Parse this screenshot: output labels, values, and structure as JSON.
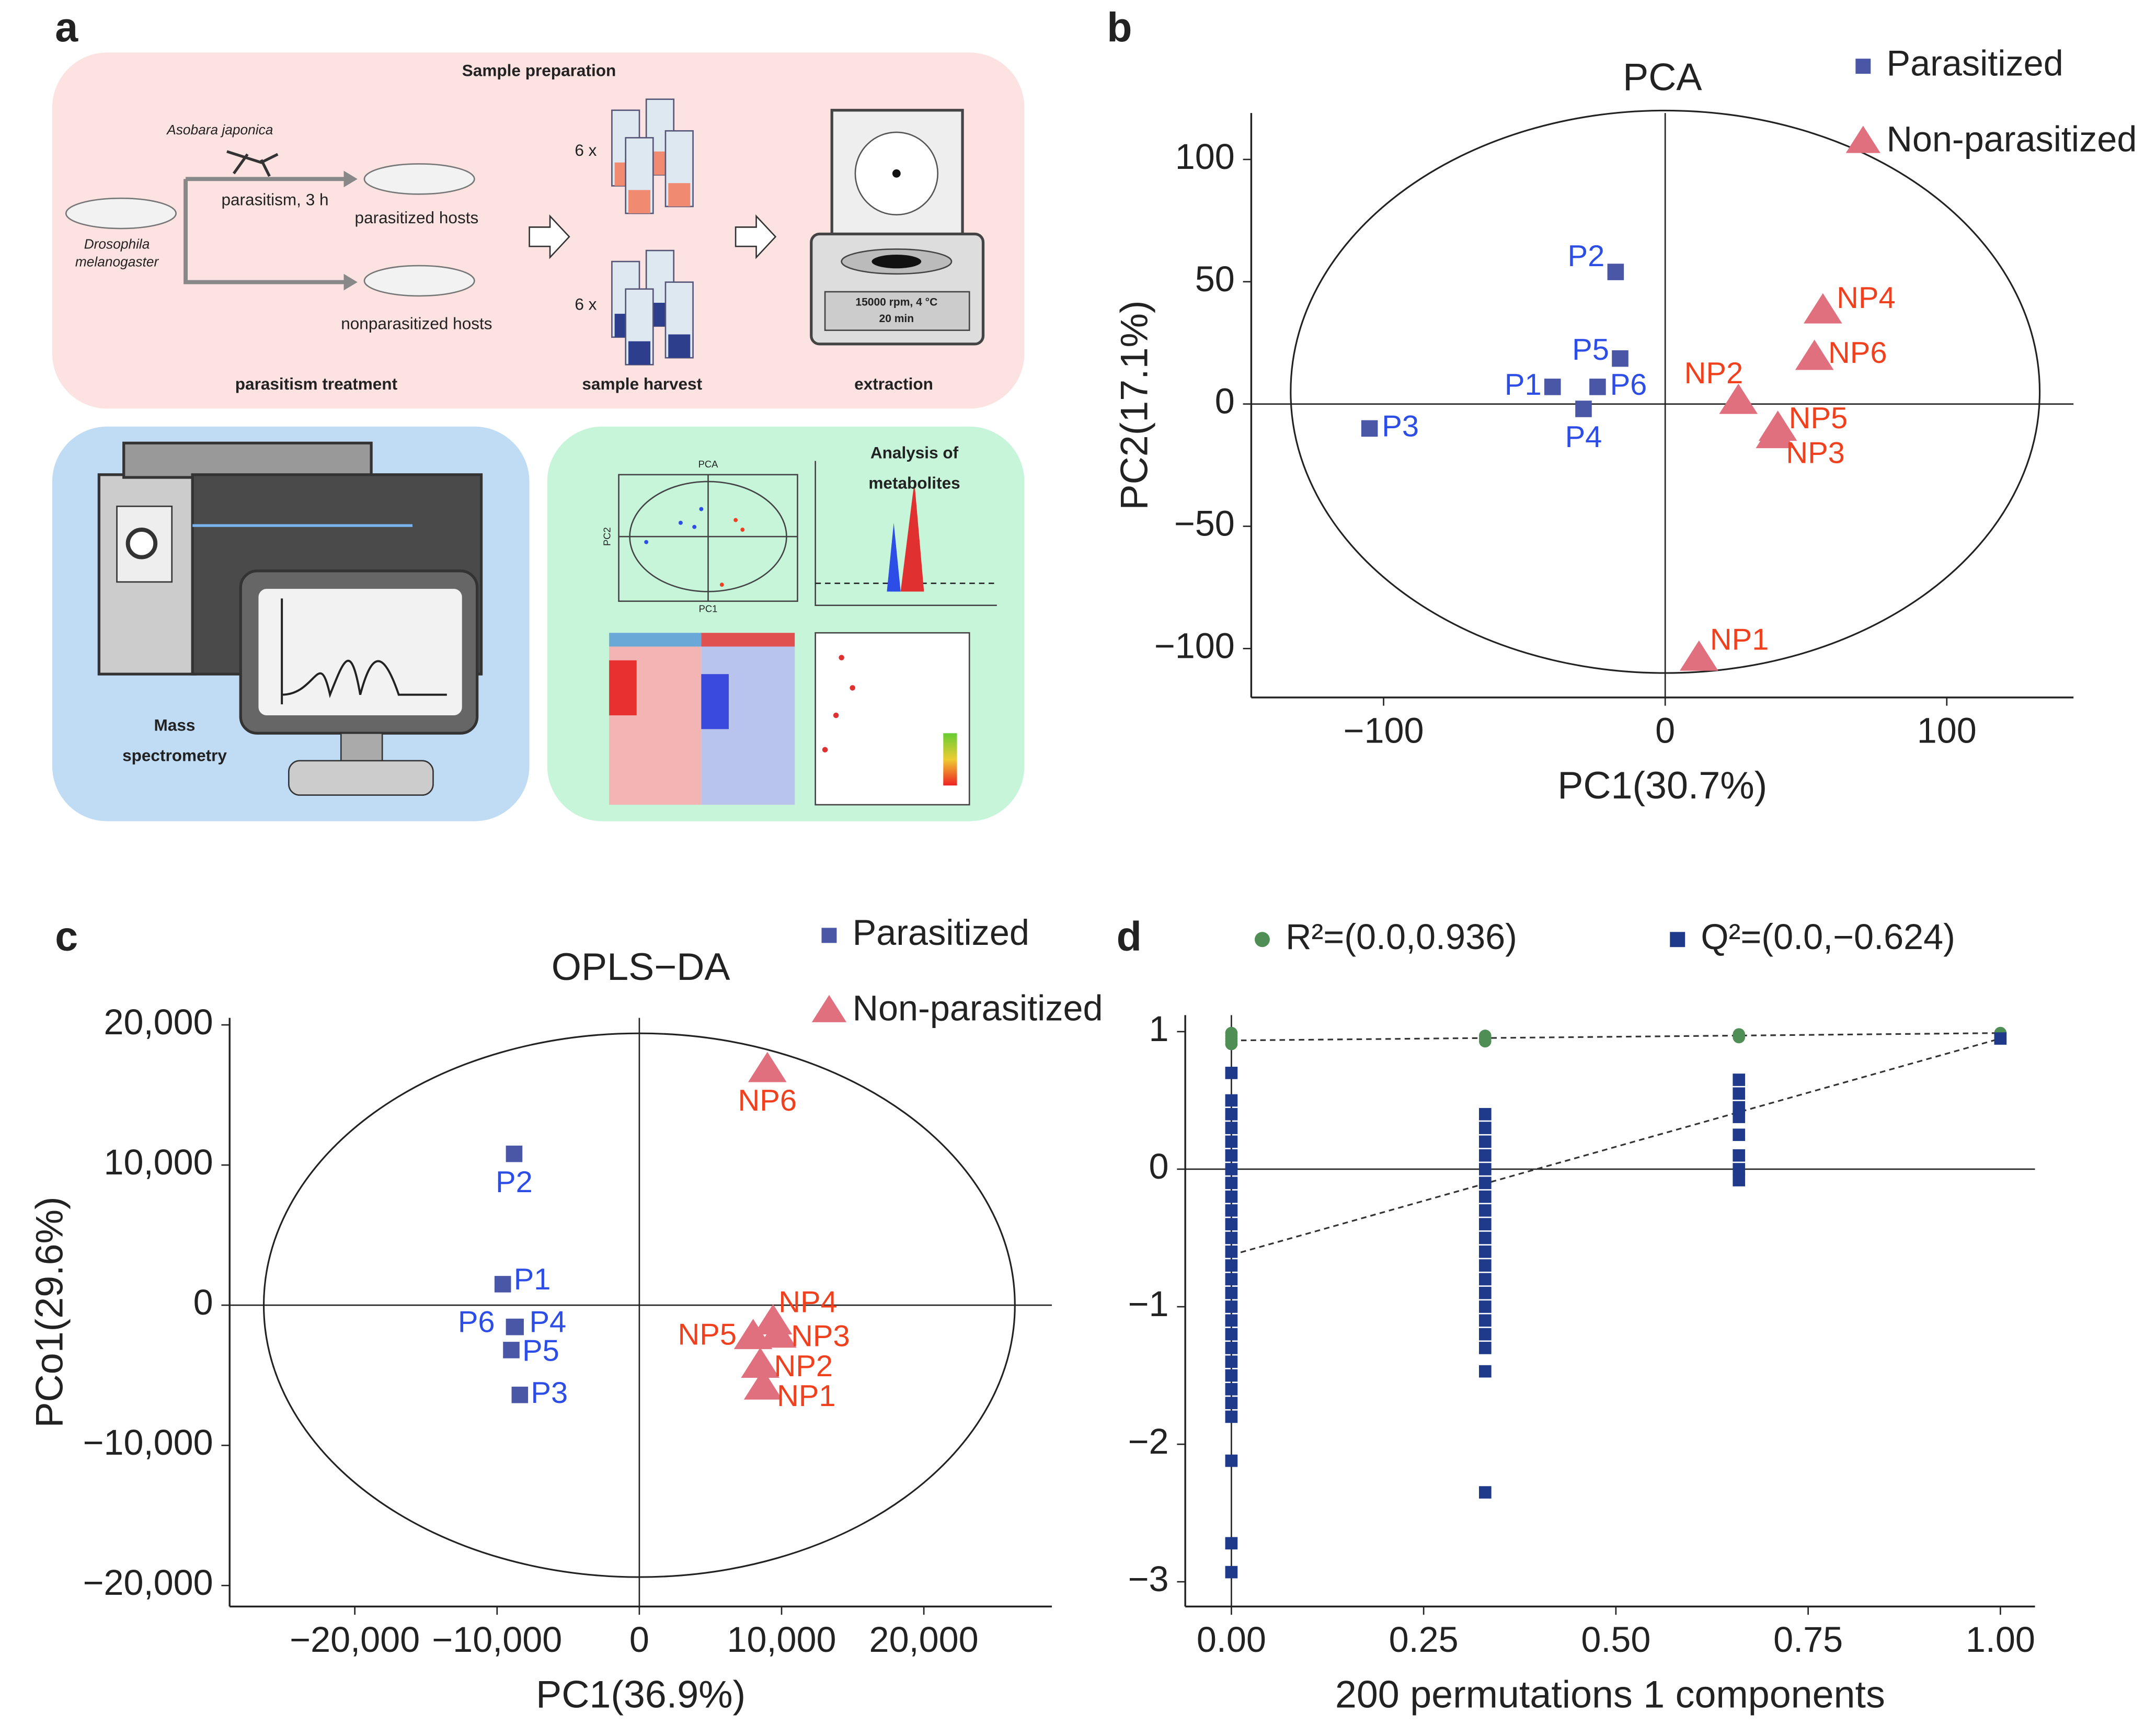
{
  "panel_labels": [
    "a",
    "b",
    "c",
    "d"
  ],
  "diagram": {
    "sample_preparation": {
      "title": "Sample preparation",
      "wasp": "Asobara japonica",
      "host": [
        "Drosophila",
        "melanogaster"
      ],
      "treatment": "parasitism, 3 h",
      "parasitized": "parasitized hosts",
      "nonparasitized": "nonparasitized hosts",
      "step1": "parasitism treatment",
      "count1": "6 x",
      "count2": "6 x",
      "step2": "sample harvest",
      "centrifuge": [
        "15000 rpm, 4 °C",
        "20 min"
      ],
      "step3": "extraction"
    },
    "mass_spec": [
      "Mass",
      "spectrometry"
    ],
    "analysis": {
      "title": [
        "Analysis of",
        "metabolites"
      ],
      "mini_title": "PCA",
      "mini_y": "PC2",
      "mini_x": "PC1"
    }
  },
  "chart_data": [
    {
      "type": "scatter",
      "title": "PCA",
      "x_label": "PC1(30.7%)",
      "y_label": "PC2(17.1%)",
      "xlim": [
        -147,
        145
      ],
      "ylim": [
        -120,
        119
      ],
      "xticks": [
        {
          "value": -100,
          "label": "−100"
        },
        0,
        100
      ],
      "yticks": [
        {
          "value": -100,
          "label": "−100"
        },
        {
          "value": -50,
          "label": "−50"
        },
        0,
        50,
        100
      ],
      "zero_lines": true,
      "legend": "top-right",
      "ellipse": {
        "cx": 0,
        "cy": 5,
        "rx": 133,
        "ry": 115
      },
      "series": [
        {
          "name": "Parasitized",
          "color": "#4a56a6",
          "marker": "square",
          "label_color": "#2d4ee6",
          "labels": [
            "P1",
            "P2",
            "P3",
            "P4",
            "P5",
            "P6"
          ],
          "x": [
            -40,
            -17.6,
            -105,
            -29,
            -16,
            -24
          ],
          "values": [
            7,
            54,
            -10,
            -2,
            18.6,
            7
          ]
        },
        {
          "name": "Non-parasitized",
          "color": "#e0707e",
          "marker": "triangle",
          "label_color": "#f0401e",
          "labels": [
            "NP1",
            "NP2",
            "NP3",
            "NP4",
            "NP5",
            "NP6"
          ],
          "x": [
            12,
            26,
            39,
            56,
            40,
            53
          ],
          "values": [
            -104,
            1,
            -13,
            38,
            -10,
            19
          ]
        }
      ]
    },
    {
      "type": "scatter",
      "title": "OPLS−DA",
      "x_label": "PC1(36.9%)",
      "y_label": "PCo1(29.6%)",
      "xlim": [
        -28800,
        29000
      ],
      "ylim": [
        -21500,
        20500
      ],
      "xticks": [
        {
          "value": -20000,
          "label": "−20,000"
        },
        {
          "value": -10000,
          "label": "−10,000"
        },
        0,
        {
          "value": 10000,
          "label": "10,000"
        },
        {
          "value": 20000,
          "label": "20,000"
        }
      ],
      "yticks": [
        {
          "value": -20000,
          "label": "−20,000"
        },
        {
          "value": -10000,
          "label": "−10,000"
        },
        0,
        {
          "value": 10000,
          "label": "10,000"
        },
        {
          "value": 20000,
          "label": "20,000"
        }
      ],
      "zero_lines": true,
      "legend": "top-right",
      "ellipse": {
        "cx": 0,
        "cy": 0,
        "rx": 26400,
        "ry": 19400
      },
      "series": [
        {
          "name": "Parasitized",
          "color": "#4a56a6",
          "marker": "square",
          "label_color": "#2d4ee6",
          "labels": [
            "P1",
            "P2",
            "P3",
            "P4",
            "P5",
            "P6"
          ],
          "x": [
            -9600,
            -8800,
            -8400,
            -8700,
            -9000,
            -8800
          ],
          "values": [
            1500,
            10800,
            -6400,
            -1550,
            -3200,
            -1550
          ]
        },
        {
          "name": "Non-parasitized",
          "color": "#e0707e",
          "marker": "triangle",
          "label_color": "#f0401e",
          "labels": [
            "NP1",
            "NP2",
            "NP3",
            "NP4",
            "NP5",
            "NP6"
          ],
          "x": [
            8700,
            8500,
            9700,
            9400,
            8000,
            9000
          ],
          "values": [
            -5850,
            -4300,
            -2150,
            -1200,
            -2250,
            16800
          ]
        }
      ]
    },
    {
      "type": "scatter",
      "x_label": "200 permutations 1 components",
      "xlim": [
        -0.06,
        1.045
      ],
      "ylim": [
        -3.18,
        1.12
      ],
      "xticks": [
        {
          "value": 0,
          "label": "0.00"
        },
        {
          "value": 0.25,
          "label": "0.25"
        },
        {
          "value": 0.5,
          "label": "0.50"
        },
        {
          "value": 0.75,
          "label": "0.75"
        },
        {
          "value": 1,
          "label": "1.00"
        }
      ],
      "yticks": [
        {
          "value": -3,
          "label": "−3"
        },
        {
          "value": -2,
          "label": "−2"
        },
        {
          "value": -1,
          "label": "−1"
        },
        0,
        1
      ],
      "zero_lines": true,
      "legend": "top",
      "lines": [
        {
          "x": [
            0,
            1
          ],
          "values": [
            0.936,
            0.99
          ]
        },
        {
          "x": [
            0,
            1
          ],
          "values": [
            -0.624,
            0.95
          ]
        }
      ],
      "series": [
        {
          "name": "R²=(0.0,0.936)",
          "color": "#4f8f55",
          "marker": "circle",
          "x": [
            0,
            0,
            0,
            0,
            0,
            0.33,
            0.33,
            0.33,
            0.66,
            0.66,
            1
          ],
          "values": [
            0.99,
            0.97,
            0.95,
            0.93,
            0.91,
            0.97,
            0.95,
            0.93,
            0.98,
            0.96,
            0.99
          ]
        },
        {
          "name": "Q²=(0.0,−0.624)",
          "color": "#1f3a8a",
          "marker": "square",
          "x": [
            0,
            0,
            0,
            0,
            0,
            0,
            0,
            0,
            0,
            0,
            0,
            0,
            0,
            0,
            0,
            0,
            0,
            0,
            0,
            0,
            0,
            0,
            0,
            0,
            0,
            0,
            0,
            0,
            0.33,
            0.33,
            0.33,
            0.33,
            0.33,
            0.33,
            0.33,
            0.33,
            0.33,
            0.33,
            0.33,
            0.33,
            0.33,
            0.33,
            0.33,
            0.33,
            0.33,
            0.33,
            0.33,
            0.33,
            0.66,
            0.66,
            0.66,
            0.66,
            0.66,
            0.66,
            0.66,
            0.66,
            1
          ],
          "values": [
            0.7,
            0.5,
            0.4,
            0.3,
            0.2,
            0.1,
            0,
            -0.1,
            -0.2,
            -0.3,
            -0.4,
            -0.5,
            -0.6,
            -0.7,
            -0.8,
            -0.9,
            -1.0,
            -1.1,
            -1.2,
            -1.3,
            -1.4,
            -1.5,
            -1.6,
            -1.7,
            -1.8,
            -2.12,
            -2.72,
            -2.93,
            0.4,
            0.3,
            0.2,
            0.1,
            0,
            -0.1,
            -0.2,
            -0.3,
            -0.4,
            -0.5,
            -0.6,
            -0.7,
            -0.8,
            -0.9,
            -1.0,
            -1.1,
            -1.2,
            -1.3,
            -1.47,
            -2.35,
            0.65,
            0.55,
            0.45,
            0.38,
            0.25,
            0.1,
            0,
            -0.08,
            0.95
          ]
        }
      ]
    }
  ]
}
